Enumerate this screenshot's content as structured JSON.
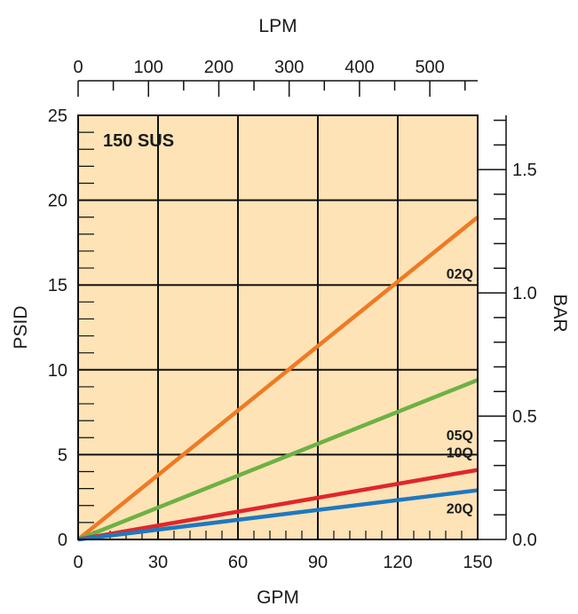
{
  "chart_data": {
    "type": "line",
    "note": "150 SUS",
    "xlabel": "GPM",
    "ylabel": "PSID",
    "x2label": "LPM",
    "y2label": "BAR",
    "xlim": [
      0,
      150
    ],
    "ylim": [
      0,
      25
    ],
    "x2lim": [
      0,
      568
    ],
    "y2lim": [
      0,
      1.72
    ],
    "x_ticks": [
      0,
      30,
      60,
      90,
      120,
      150
    ],
    "y_ticks": [
      0,
      5,
      10,
      15,
      20,
      25
    ],
    "x2_ticks": [
      0,
      100,
      200,
      300,
      400,
      500
    ],
    "y2_ticks": [
      0.0,
      0.5,
      1.0,
      1.5
    ],
    "x_tick_labels": [
      "0",
      "30",
      "60",
      "90",
      "120",
      "150"
    ],
    "y_tick_labels": [
      "0",
      "5",
      "10",
      "15",
      "20",
      "25"
    ],
    "x2_tick_labels": [
      "0",
      "100",
      "200",
      "300",
      "400",
      "500"
    ],
    "y2_tick_labels": [
      "0.0",
      "0.5",
      "1.0",
      "1.5"
    ],
    "grid": true,
    "background_color": "#fde3b6",
    "series": [
      {
        "name": "02Q",
        "color": "#ef7a23",
        "x": [
          0,
          150
        ],
        "y": [
          0,
          19.0
        ]
      },
      {
        "name": "05Q",
        "color": "#6db144",
        "x": [
          0,
          150
        ],
        "y": [
          0,
          9.4
        ]
      },
      {
        "name": "10Q",
        "color": "#e0262b",
        "x": [
          0,
          150
        ],
        "y": [
          0,
          4.1
        ]
      },
      {
        "name": "20Q",
        "color": "#1f78c0",
        "x": [
          0,
          150
        ],
        "y": [
          0,
          2.9
        ]
      }
    ]
  }
}
